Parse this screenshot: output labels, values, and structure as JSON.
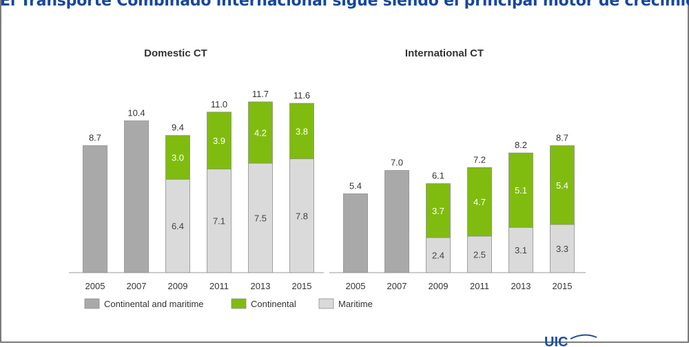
{
  "slide": {
    "title": "El Transporte Combinado internacional sigue siendo el principal motor de crecimiento"
  },
  "legend": {
    "items": [
      {
        "label": "Continental  and maritime",
        "color": "#a9a9a9"
      },
      {
        "label": "Continental",
        "color": "#80bc0f"
      },
      {
        "label": "Maritime",
        "color": "#dadada"
      }
    ]
  },
  "colors": {
    "combined": "#a9a9a9",
    "continental": "#80bc0f",
    "maritime": "#dadada",
    "bar_border": "#8c8c8c",
    "title": "#17479e"
  },
  "chart_data": [
    {
      "type": "bar",
      "stacked": true,
      "title": "Domestic CT",
      "categories": [
        "2005",
        "2007",
        "2009",
        "2011",
        "2013",
        "2015"
      ],
      "series": [
        {
          "name": "Continental  and maritime",
          "values": [
            8.7,
            10.4,
            null,
            null,
            null,
            null
          ]
        },
        {
          "name": "Maritime",
          "values": [
            null,
            null,
            6.4,
            7.1,
            7.5,
            7.8
          ]
        },
        {
          "name": "Continental",
          "values": [
            null,
            null,
            3.0,
            3.9,
            4.2,
            3.8
          ]
        }
      ],
      "totals": [
        "8.7",
        "10.4",
        "9.4",
        "11.0",
        "11.7",
        "11.6"
      ],
      "ylim": [
        0,
        12.5
      ]
    },
    {
      "type": "bar",
      "stacked": true,
      "title": "International CT",
      "categories": [
        "2005",
        "2007",
        "2009",
        "2011",
        "2013",
        "2015"
      ],
      "series": [
        {
          "name": "Continental  and maritime",
          "values": [
            5.4,
            7.0,
            null,
            null,
            null,
            null
          ]
        },
        {
          "name": "Maritime",
          "values": [
            null,
            null,
            2.4,
            2.5,
            3.1,
            3.3
          ]
        },
        {
          "name": "Continental",
          "values": [
            null,
            null,
            3.7,
            4.7,
            5.1,
            5.4
          ]
        }
      ],
      "totals": [
        "5.4",
        "7.0",
        "6.1",
        "7.2",
        "8.2",
        "8.7"
      ],
      "ylim": [
        0,
        12.5
      ]
    }
  ]
}
